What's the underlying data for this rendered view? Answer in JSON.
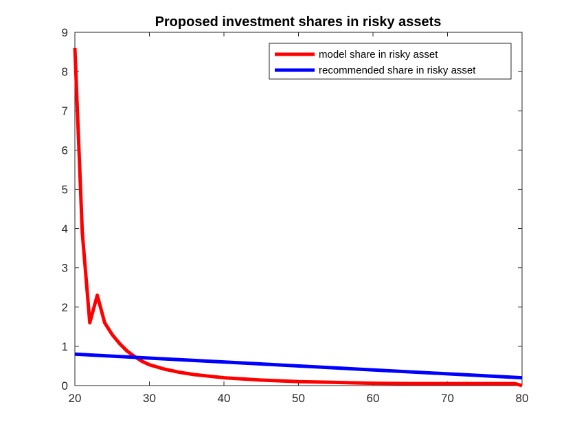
{
  "chart_data": {
    "type": "line",
    "title": "Proposed investment shares in risky assets",
    "xlabel": "",
    "ylabel": "",
    "xlim": [
      20,
      80
    ],
    "ylim": [
      0,
      9
    ],
    "xticks": [
      "20",
      "30",
      "40",
      "50",
      "60",
      "70",
      "80"
    ],
    "yticks": [
      "0",
      "1",
      "2",
      "3",
      "4",
      "5",
      "6",
      "7",
      "8",
      "9"
    ],
    "grid": false,
    "legend_position": "top-right",
    "series": [
      {
        "name": "model share in risky asset",
        "color": "#ff0000",
        "x": [
          20,
          21,
          22,
          23,
          24,
          25,
          26,
          27,
          28,
          29,
          30,
          32,
          34,
          36,
          38,
          40,
          45,
          50,
          55,
          60,
          65,
          70,
          75,
          79,
          80
        ],
        "y": [
          8.6,
          3.9,
          1.6,
          2.3,
          1.6,
          1.3,
          1.07,
          0.88,
          0.74,
          0.62,
          0.53,
          0.42,
          0.34,
          0.28,
          0.24,
          0.2,
          0.14,
          0.1,
          0.08,
          0.06,
          0.05,
          0.05,
          0.05,
          0.05,
          0.0
        ]
      },
      {
        "name": "recommended share in risky asset",
        "color": "#0000ff",
        "x": [
          20,
          80
        ],
        "y": [
          0.8,
          0.2
        ]
      }
    ]
  }
}
